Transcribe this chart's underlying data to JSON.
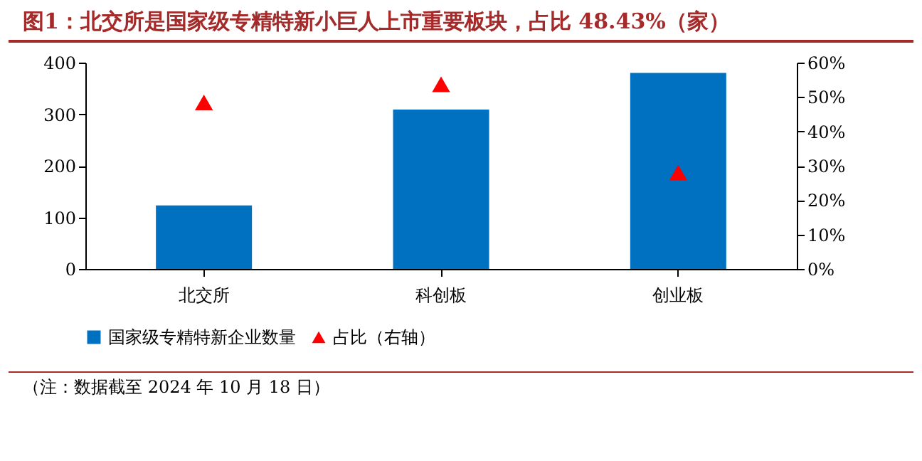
{
  "chart_data": {
    "type": "bar",
    "title": "图1：北交所是国家级专精特新小巨人上市重要板块，占比 48.43%（家）",
    "categories": [
      "北交所",
      "科创板",
      "创业板"
    ],
    "series": [
      {
        "name": "国家级专精特新企业数量",
        "color": "#0070c0",
        "values": [
          123,
          309,
          380
        ]
      },
      {
        "name": "占比（右轴）",
        "type": "scatter",
        "axis": "y2",
        "marker": "triangle",
        "color": "#ff0000",
        "values": [
          48.43,
          53.7,
          28.0
        ]
      }
    ],
    "ylim": [
      0,
      400
    ],
    "yticks": [
      0,
      100,
      200,
      300,
      400
    ],
    "y2lim": [
      0,
      60
    ],
    "y2ticks": [
      {
        "value": 0,
        "label": "0%"
      },
      {
        "value": 10,
        "label": "10%"
      },
      {
        "value": 20,
        "label": "20%"
      },
      {
        "value": 30,
        "label": "30%"
      },
      {
        "value": 40,
        "label": "40%"
      },
      {
        "value": 50,
        "label": "50%"
      },
      {
        "value": 60,
        "label": "60%"
      }
    ],
    "grid": false,
    "legend": "bottom",
    "annotations": [
      "（注：数据截至 2024 年 10 月 18 日）"
    ]
  }
}
